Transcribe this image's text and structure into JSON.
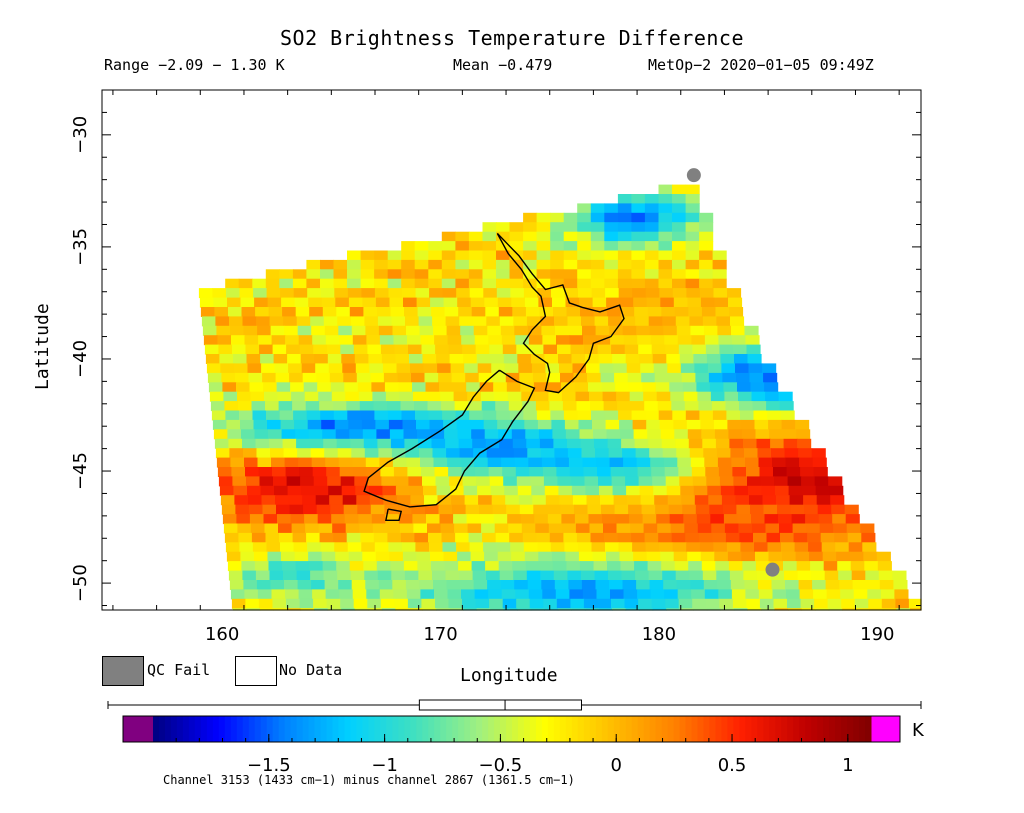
{
  "chart_data": {
    "type": "heatmap",
    "title": "SO2 Brightness Temperature Difference",
    "subtitle_range": "Range −2.09 − 1.30 K",
    "subtitle_mean": "Mean −0.479",
    "subtitle_satellite": "MetOp−2 2020−01−05 09:49Z",
    "xlabel": "Longitude",
    "ylabel": "Latitude",
    "xlim": [
      154.5,
      192
    ],
    "ylim": [
      -51.2,
      -28
    ],
    "x_ticks": [
      160,
      170,
      180,
      190
    ],
    "x_tick_labels": [
      "160",
      "170",
      "180",
      "190"
    ],
    "y_ticks": [
      -30,
      -35,
      -40,
      -45,
      -50
    ],
    "y_tick_labels": [
      "−30",
      "−35",
      "−40",
      "−45",
      "−50"
    ],
    "value_range": [
      -2.09,
      1.3
    ],
    "mean": -0.479,
    "swath_lat_range": [
      -51.2,
      -31.8
    ],
    "swath_west_lon": [
      158.9,
      160.5
    ],
    "swath_east_lon": [
      181.6,
      192
    ],
    "features": [
      {
        "lon": 163.5,
        "lat": -45.6,
        "lw": 4.5,
        "lh": 1.6,
        "value": 0.75
      },
      {
        "lon": 186.0,
        "lat": -45.2,
        "lw": 7.0,
        "lh": 2.3,
        "value": 0.85
      },
      {
        "lon": 183.0,
        "lat": -47.3,
        "lw": 5.5,
        "lh": 1.6,
        "value": 0.45
      },
      {
        "lon": 178.0,
        "lat": -47.5,
        "lw": 3.0,
        "lh": 1.2,
        "value": 0.2
      },
      {
        "lon": 180.0,
        "lat": -38.0,
        "lw": 5.0,
        "lh": 1.8,
        "value": 0.05
      },
      {
        "lon": 166.0,
        "lat": -42.8,
        "lw": 6.0,
        "lh": 1.1,
        "value": -1.45
      },
      {
        "lon": 172.5,
        "lat": -43.7,
        "lw": 4.0,
        "lh": 1.0,
        "value": -1.5
      },
      {
        "lon": 177.0,
        "lat": -44.6,
        "lw": 5.0,
        "lh": 1.3,
        "value": -1.2
      },
      {
        "lon": 185.0,
        "lat": -40.5,
        "lw": 4.0,
        "lh": 1.6,
        "value": -1.5
      },
      {
        "lon": 178.5,
        "lat": -33.5,
        "lw": 3.0,
        "lh": 1.3,
        "value": -1.45
      },
      {
        "lon": 176.0,
        "lat": -50.2,
        "lw": 8.0,
        "lh": 1.5,
        "value": -1.3
      },
      {
        "lon": 163.0,
        "lat": -49.5,
        "lw": 3.0,
        "lh": 1.2,
        "value": -0.9
      }
    ],
    "qc_fail_points": [
      {
        "lon": 181.6,
        "lat": -31.8
      },
      {
        "lon": 185.2,
        "lat": -49.4
      }
    ],
    "coastline_north_island": [
      [
        172.6,
        -34.4
      ],
      [
        173.1,
        -34.9
      ],
      [
        173.6,
        -35.4
      ],
      [
        174.2,
        -36.2
      ],
      [
        174.8,
        -36.9
      ],
      [
        175.6,
        -36.7
      ],
      [
        175.9,
        -37.5
      ],
      [
        176.5,
        -37.7
      ],
      [
        177.3,
        -37.9
      ],
      [
        178.2,
        -37.6
      ],
      [
        178.4,
        -38.2
      ],
      [
        177.8,
        -39.0
      ],
      [
        177.0,
        -39.3
      ],
      [
        176.8,
        -40.0
      ],
      [
        176.2,
        -40.8
      ],
      [
        175.4,
        -41.5
      ],
      [
        174.8,
        -41.4
      ],
      [
        175.0,
        -40.6
      ],
      [
        174.9,
        -40.2
      ],
      [
        174.3,
        -39.8
      ],
      [
        173.8,
        -39.3
      ],
      [
        174.2,
        -38.7
      ],
      [
        174.8,
        -38.1
      ],
      [
        174.6,
        -37.2
      ],
      [
        174.2,
        -36.8
      ],
      [
        173.7,
        -36.0
      ],
      [
        173.1,
        -35.3
      ],
      [
        172.6,
        -34.4
      ]
    ],
    "coastline_south_island": [
      [
        172.7,
        -40.5
      ],
      [
        173.5,
        -41.0
      ],
      [
        174.3,
        -41.3
      ],
      [
        174.0,
        -41.9
      ],
      [
        173.3,
        -42.8
      ],
      [
        172.8,
        -43.6
      ],
      [
        171.8,
        -44.2
      ],
      [
        171.1,
        -45.0
      ],
      [
        170.7,
        -45.8
      ],
      [
        169.8,
        -46.5
      ],
      [
        168.6,
        -46.6
      ],
      [
        167.5,
        -46.3
      ],
      [
        166.5,
        -45.9
      ],
      [
        166.7,
        -45.3
      ],
      [
        167.6,
        -44.6
      ],
      [
        168.7,
        -44.0
      ],
      [
        170.0,
        -43.2
      ],
      [
        171.0,
        -42.5
      ],
      [
        171.5,
        -41.7
      ],
      [
        172.1,
        -41.0
      ],
      [
        172.7,
        -40.5
      ]
    ],
    "coastline_stewart_island": [
      [
        167.6,
        -46.7
      ],
      [
        168.2,
        -46.8
      ],
      [
        168.1,
        -47.2
      ],
      [
        167.5,
        -47.2
      ],
      [
        167.6,
        -46.7
      ]
    ],
    "colorbar": {
      "min": -2.0,
      "max": 1.1,
      "ticks": [
        -1.5,
        -1,
        -0.5,
        0,
        0.5,
        1
      ],
      "tick_labels": [
        "−1.5",
        "−1",
        "−0.5",
        "0",
        "0.5",
        "1"
      ],
      "unit": "K",
      "under_color": "#800080",
      "over_color": "#ff00ff",
      "colors": [
        "#000080",
        "#0000ff",
        "#0080ff",
        "#00d0ff",
        "#40e0c0",
        "#a0f080",
        "#ffff00",
        "#ffc000",
        "#ff8000",
        "#ff2000",
        "#c00000",
        "#800000"
      ],
      "boxplot": {
        "whisker_low": -2.09,
        "q1": -0.85,
        "median": -0.48,
        "q3": -0.15,
        "whisker_high": 1.3
      }
    },
    "grid": false
  },
  "legend": {
    "qc_fail_label": "QC Fail",
    "qc_fail_color": "#808080",
    "no_data_label": "No Data",
    "no_data_color": "#ffffff"
  },
  "footnote": "Channel 3153 (1433 cm−1) minus channel 2867 (1361.5 cm−1)"
}
